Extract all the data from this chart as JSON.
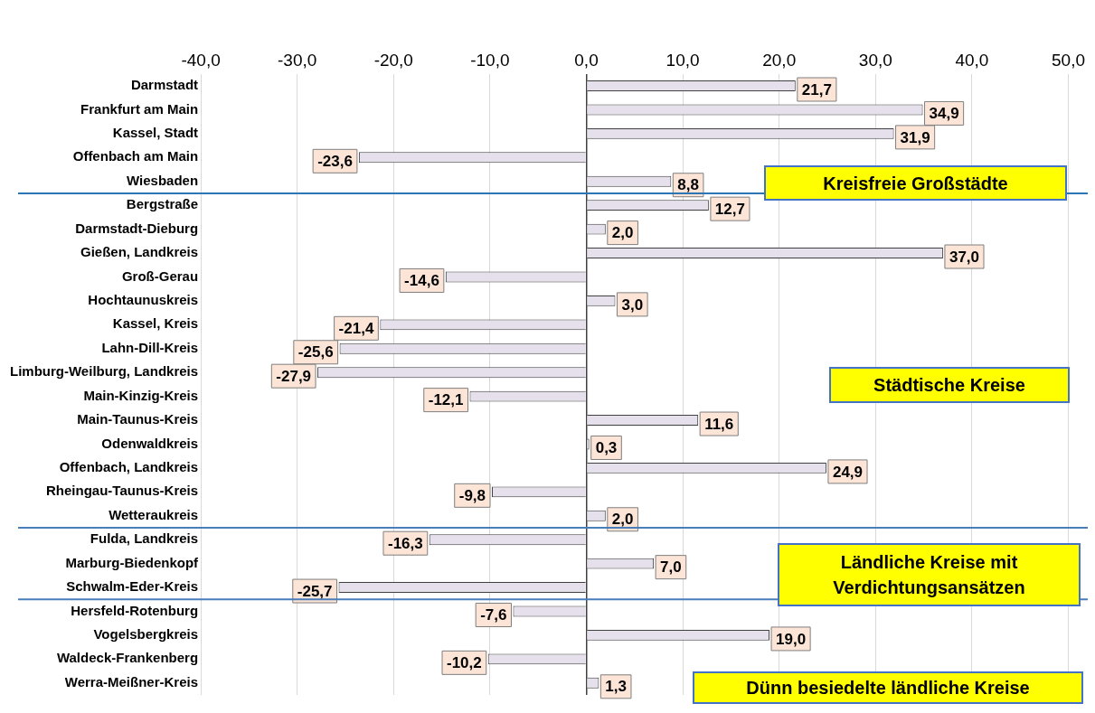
{
  "chart_data": {
    "type": "bar",
    "orientation": "horizontal",
    "categories": [
      "Darmstadt",
      "Frankfurt am Main",
      "Kassel, Stadt",
      "Offenbach am Main",
      "Wiesbaden",
      "Bergstraße",
      "Darmstadt-Dieburg",
      "Gießen, Landkreis",
      "Groß-Gerau",
      "Hochtaunuskreis",
      "Kassel, Kreis",
      "Lahn-Dill-Kreis",
      "Limburg-Weilburg, Landkreis",
      "Main-Kinzig-Kreis",
      "Main-Taunus-Kreis",
      "Odenwaldkreis",
      "Offenbach, Landkreis",
      "Rheingau-Taunus-Kreis",
      "Wetteraukreis",
      "Fulda, Landkreis",
      "Marburg-Biedenkopf",
      "Schwalm-Eder-Kreis",
      "Hersfeld-Rotenburg",
      "Vogelsbergkreis",
      "Waldeck-Frankenberg",
      "Werra-Meißner-Kreis"
    ],
    "values": [
      21.7,
      34.9,
      31.9,
      -23.6,
      8.8,
      12.7,
      2.0,
      37.0,
      -14.6,
      3.0,
      -21.4,
      -25.6,
      -27.9,
      -12.1,
      11.6,
      0.3,
      24.9,
      -9.8,
      2.0,
      -16.3,
      7.0,
      -25.7,
      -7.6,
      19.0,
      -10.2,
      1.3
    ],
    "value_labels": [
      "21,7",
      "34,9",
      "31,9",
      "-23,6",
      "8,8",
      "12,7",
      "2,0",
      "37,0",
      "-14,6",
      "3,0",
      "-21,4",
      "-25,6",
      "-27,9",
      "-12,1",
      "11,6",
      "0,3",
      "24,9",
      "-9,8",
      "2,0",
      "-16,3",
      "7,0",
      "-25,7",
      "-7,6",
      "19,0",
      "-10,2",
      "1,3"
    ],
    "color": "#e6e0ec",
    "xlim": [
      -40,
      50
    ],
    "xticks": [
      {
        "value": -40,
        "label": "-40,0"
      },
      {
        "value": -30,
        "label": "-30,0"
      },
      {
        "value": -20,
        "label": "-20,0"
      },
      {
        "value": -10,
        "label": "-10,0"
      },
      {
        "value": 0,
        "label": "0,0"
      },
      {
        "value": 10,
        "label": "10,0"
      },
      {
        "value": 20,
        "label": "20,0"
      },
      {
        "value": 30,
        "label": "30,0"
      },
      {
        "value": 40,
        "label": "40,0"
      },
      {
        "value": 50,
        "label": "50,0"
      }
    ],
    "grid": "x",
    "legend": false,
    "ref_lines": [
      {
        "axis": "y",
        "value": "Wiesbaden",
        "color": "#2e75b6"
      },
      {
        "axis": "y",
        "value": "Wetteraukreis",
        "color": "#4a7ebb"
      },
      {
        "axis": "y",
        "value": "Schwalm-Eder-Kreis",
        "color": "#4a7ebb"
      }
    ],
    "annotations": [
      "Kreisfreie Großstädte",
      "Städtische Kreise",
      "Ländliche Kreise mit Verdichtungsansätzen",
      "Dünn besiedelte ländliche Kreise"
    ]
  }
}
